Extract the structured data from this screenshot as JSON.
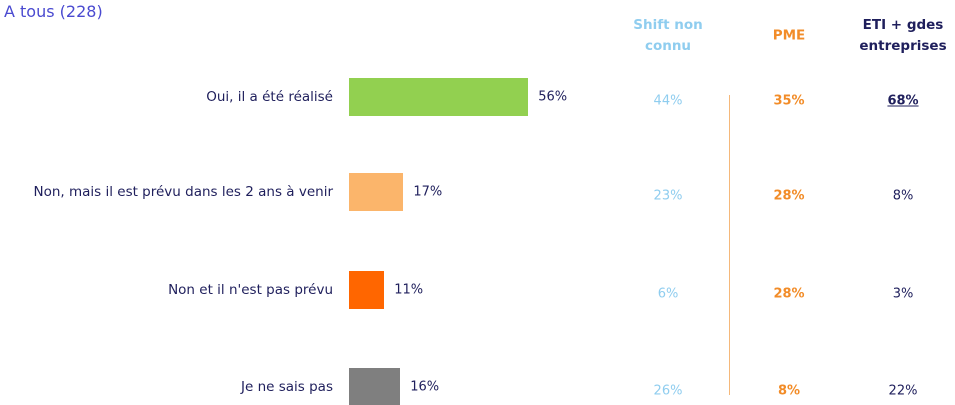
{
  "chart_data": {
    "type": "bar",
    "subtitle": "A tous (228)",
    "categories": [
      "Oui, il a été réalisé",
      "Non, mais il est prévu dans les 2 ans à venir",
      "Non et il n'est pas prévu",
      "Je ne sais pas"
    ],
    "values": [
      56,
      17,
      11,
      16
    ],
    "value_labels": [
      "56%",
      "17%",
      "11%",
      "16%"
    ],
    "colors": [
      "#92d050",
      "#fbb56b",
      "#ff6600",
      "#7f7f7f"
    ],
    "columns": [
      {
        "name": "Shift non connu",
        "color": "#8fcdef",
        "bold": false,
        "values": [
          44,
          23,
          6,
          26
        ],
        "value_labels": [
          "44%",
          "23%",
          "6%",
          "26%"
        ]
      },
      {
        "name": "PME",
        "color": "#f28c28",
        "bold": true,
        "values": [
          35,
          28,
          28,
          8
        ],
        "value_labels": [
          "35%",
          "28%",
          "28%",
          "8%"
        ]
      },
      {
        "name": "ETI + gdes entreprises",
        "color": "#1f1f5c",
        "bold": false,
        "values": [
          68,
          8,
          3,
          22
        ],
        "value_labels": [
          "68%",
          "8%",
          "3%",
          "22%"
        ],
        "emphasis": [
          true,
          false,
          false,
          false
        ]
      }
    ]
  }
}
